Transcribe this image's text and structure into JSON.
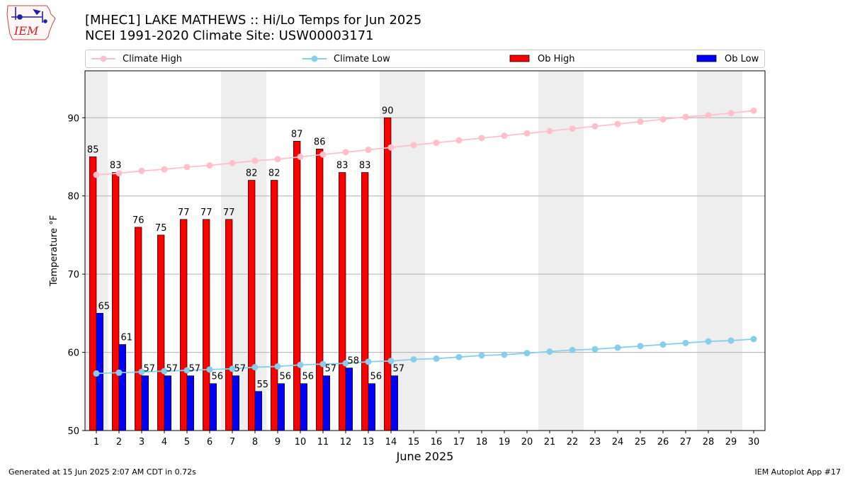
{
  "header": {
    "title_line1": "[MHEC1] LAKE MATHEWS :: Hi/Lo Temps for Jun 2025",
    "title_line2": "NCEI 1991-2020 Climate Site: USW00003171"
  },
  "logo": {
    "text": "IEM",
    "icon": "iem-iowa-logo"
  },
  "colors": {
    "climate_high": "#ffc0cb",
    "climate_low": "#87ceeb",
    "ob_high": "#ff0000",
    "ob_low": "#0000ff",
    "weekend_shade": "#eeeeee",
    "grid": "#b0b0b0"
  },
  "footer": {
    "generated": "Generated at 15 Jun 2025 2:07 AM CDT in 0.72s",
    "app": "IEM Autoplot App #17"
  },
  "chart_data": {
    "type": "bar",
    "xlabel": "June 2025",
    "ylabel": "Temperature °F",
    "ylim": [
      50,
      96
    ],
    "xlim": [
      0.5,
      30.5
    ],
    "yticks": [
      50,
      60,
      70,
      80,
      90
    ],
    "grid": "horizontal",
    "legend_position": "top",
    "days": [
      1,
      2,
      3,
      4,
      5,
      6,
      7,
      8,
      9,
      10,
      11,
      12,
      13,
      14,
      15,
      16,
      17,
      18,
      19,
      20,
      21,
      22,
      23,
      24,
      25,
      26,
      27,
      28,
      29,
      30
    ],
    "weekend_shading": [
      [
        0.5,
        1.5
      ],
      [
        6.5,
        8.5
      ],
      [
        13.5,
        15.5
      ],
      [
        20.5,
        22.5
      ],
      [
        27.5,
        29.5
      ]
    ],
    "series": [
      {
        "name": "Climate High",
        "kind": "line",
        "values": [
          82.7,
          82.9,
          83.2,
          83.4,
          83.7,
          83.9,
          84.2,
          84.5,
          84.7,
          85.0,
          85.3,
          85.6,
          85.9,
          86.2,
          86.5,
          86.8,
          87.1,
          87.4,
          87.7,
          88.0,
          88.3,
          88.6,
          88.9,
          89.2,
          89.5,
          89.8,
          90.1,
          90.3,
          90.6,
          90.9
        ]
      },
      {
        "name": "Climate Low",
        "kind": "line",
        "values": [
          57.3,
          57.4,
          57.5,
          57.6,
          57.7,
          57.8,
          57.9,
          58.1,
          58.2,
          58.4,
          58.5,
          58.6,
          58.8,
          58.9,
          59.1,
          59.2,
          59.4,
          59.6,
          59.7,
          59.9,
          60.1,
          60.3,
          60.4,
          60.6,
          60.8,
          61.0,
          61.2,
          61.4,
          61.5,
          61.7
        ]
      },
      {
        "name": "Ob High",
        "kind": "bar",
        "values": [
          85,
          83,
          76,
          75,
          77,
          77,
          77,
          82,
          82,
          87,
          86,
          83,
          83,
          90
        ]
      },
      {
        "name": "Ob Low",
        "kind": "bar",
        "values": [
          65,
          61,
          57,
          57,
          57,
          56,
          57,
          55,
          56,
          56,
          57,
          58,
          56,
          57
        ]
      }
    ]
  }
}
